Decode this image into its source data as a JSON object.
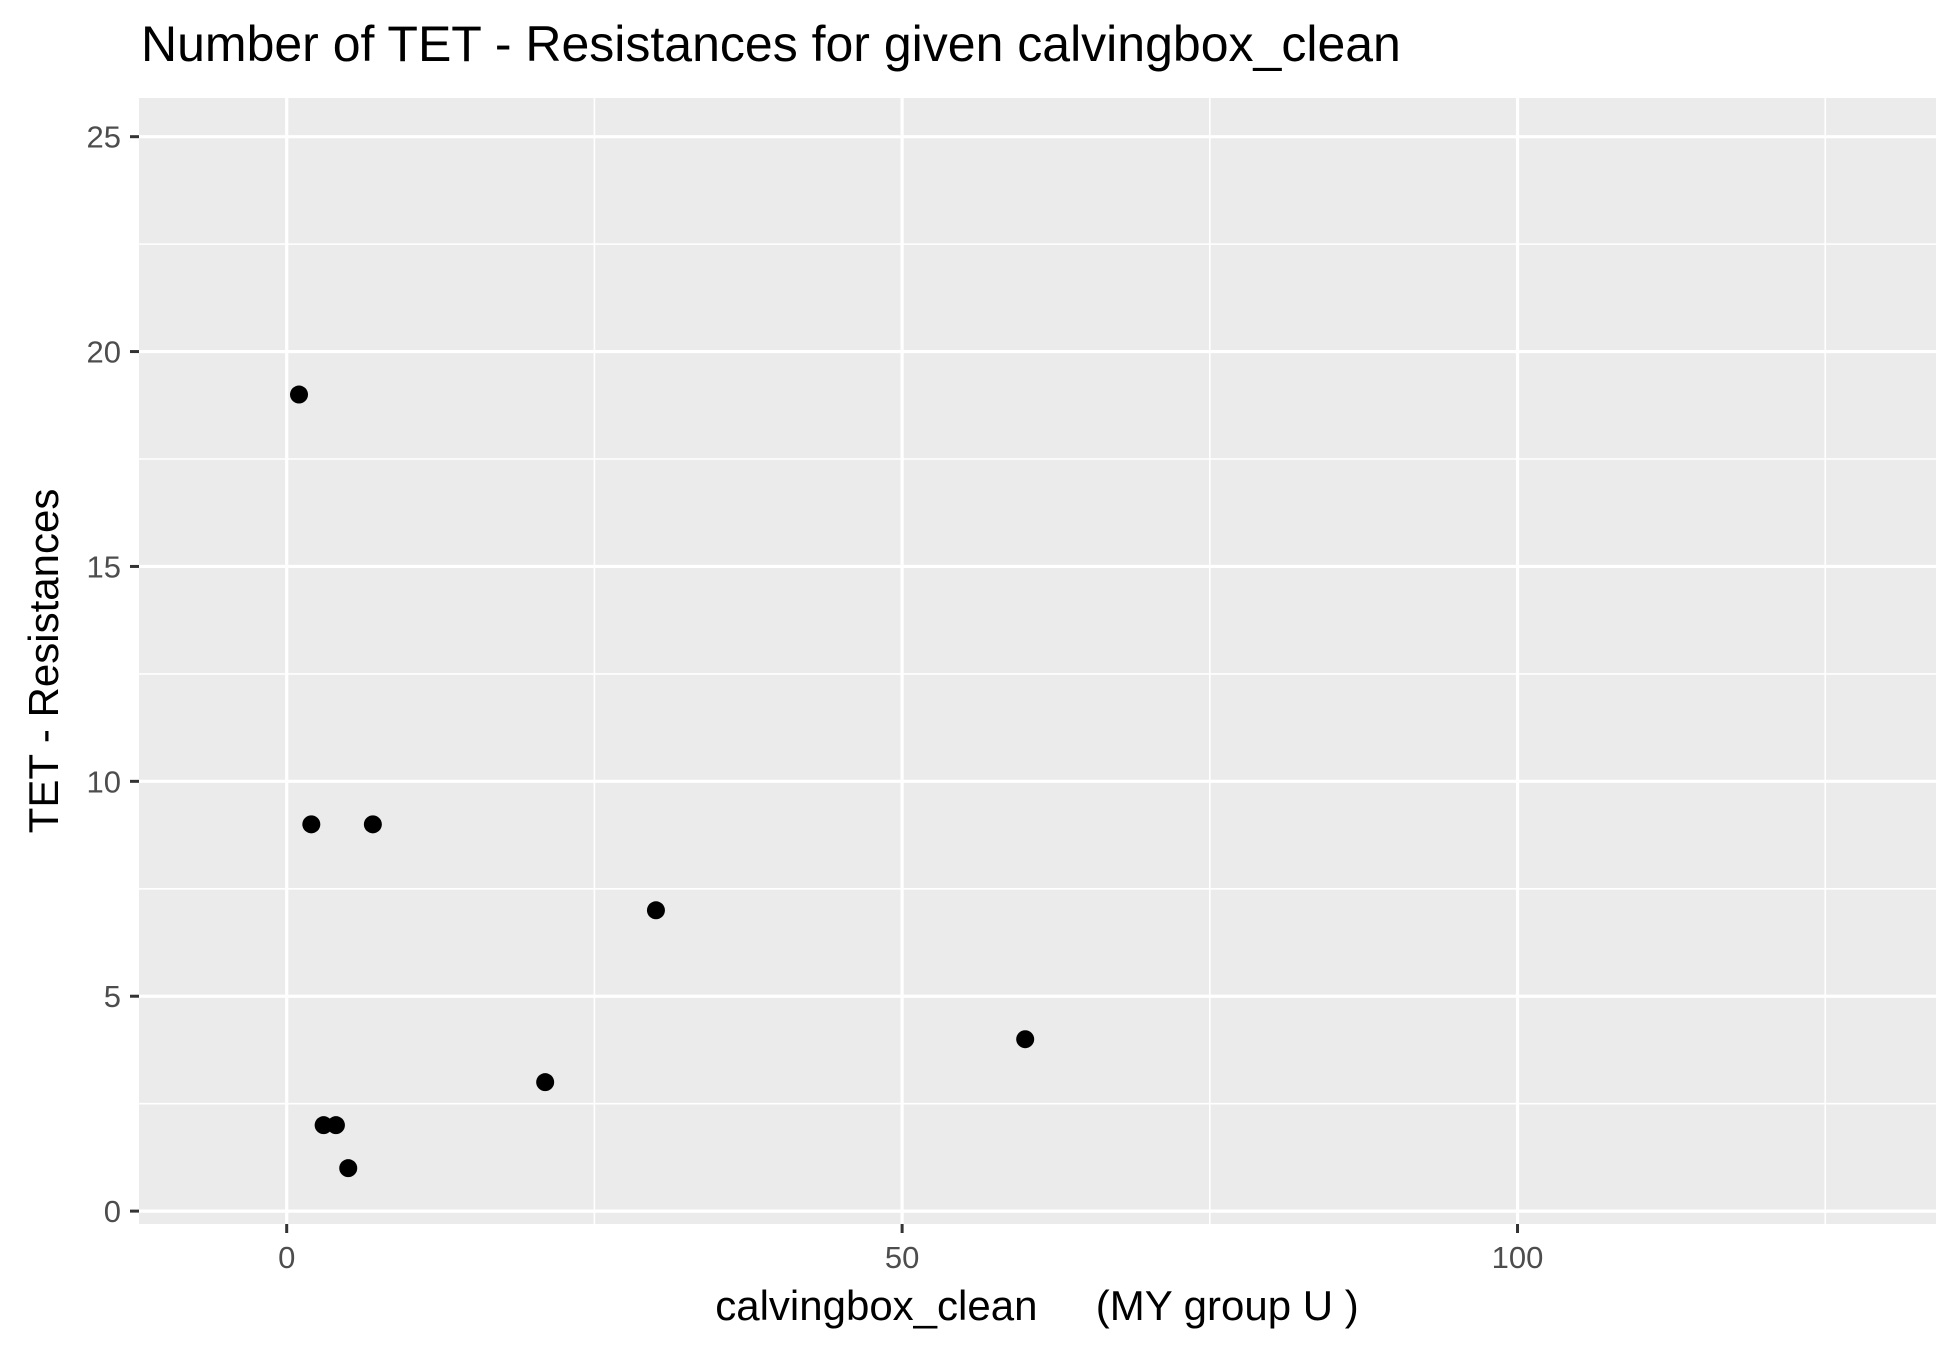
{
  "chart_data": {
    "type": "scatter",
    "title": "Number of TET - Resistances for given calvingbox_clean",
    "xlabel": "calvingbox_clean     (MY group U )",
    "ylabel": "TET - Resistances",
    "xlim": [
      -12,
      134
    ],
    "ylim": [
      -0.3,
      25.9
    ],
    "x_ticks": [
      0,
      50,
      100
    ],
    "x_tick_labels": [
      "0",
      "50",
      "100"
    ],
    "x_minor_ticks": [
      25,
      75,
      125
    ],
    "y_ticks": [
      0,
      5,
      10,
      15,
      20,
      25
    ],
    "y_tick_labels": [
      "0",
      "5",
      "10",
      "15",
      "20",
      "25"
    ],
    "y_minor_ticks": [
      2.5,
      7.5,
      12.5,
      17.5,
      22.5
    ],
    "grid": true,
    "legend": "none",
    "colors": {
      "panel_background": "#ebebeb",
      "grid": "#ffffff",
      "point": "#000000",
      "tick": "#333333"
    },
    "points": [
      {
        "x": 1,
        "y": 19
      },
      {
        "x": 2,
        "y": 9
      },
      {
        "x": 7,
        "y": 9
      },
      {
        "x": 30,
        "y": 7
      },
      {
        "x": 60,
        "y": 4
      },
      {
        "x": 21,
        "y": 3
      },
      {
        "x": 3,
        "y": 2
      },
      {
        "x": 4,
        "y": 2
      },
      {
        "x": 5,
        "y": 1
      }
    ]
  }
}
